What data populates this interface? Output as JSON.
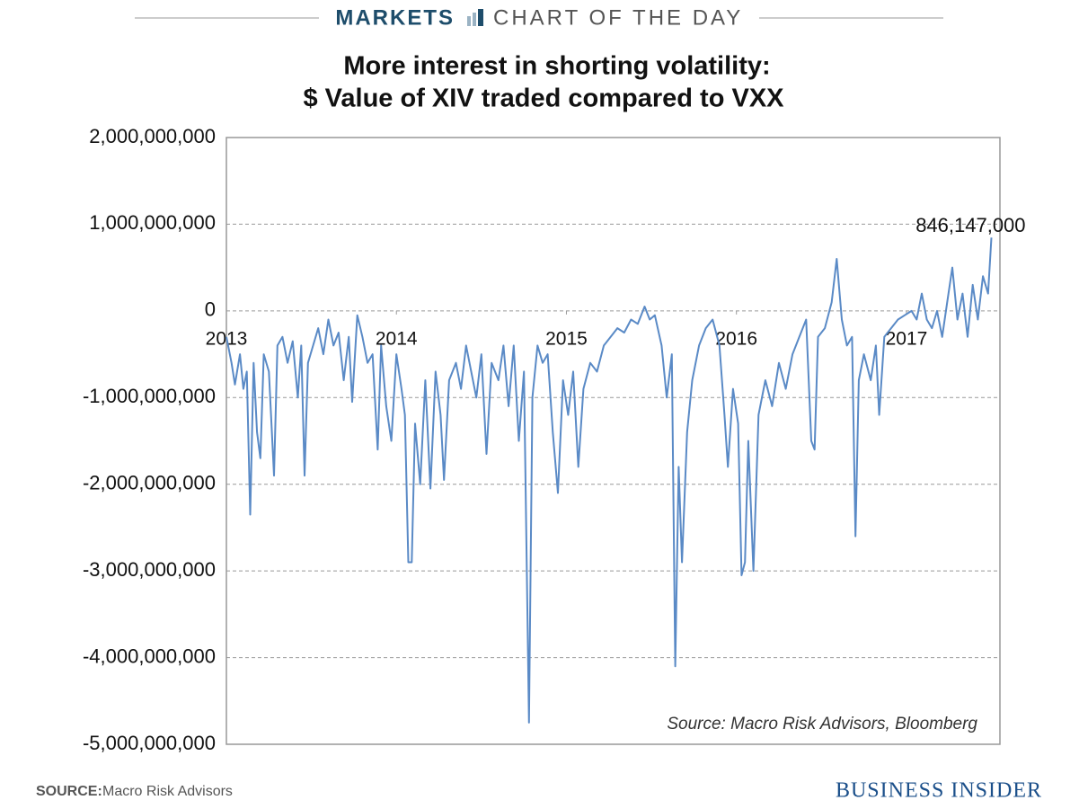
{
  "header": {
    "section": "MARKETS",
    "kicker": "CHART OF THE DAY"
  },
  "chart_data": {
    "type": "line",
    "title": [
      "More interest in shorting volatility:",
      "$ Value of XIV traded compared to VXX"
    ],
    "source_note": "Source: Macro Risk Advisors, Bloomberg",
    "xlim": [
      2013,
      2017.55
    ],
    "xticks": [
      2013,
      2014,
      2015,
      2016,
      2017
    ],
    "ylim": [
      -5000000000,
      2000000000
    ],
    "yticks": [
      {
        "value": -5000000000,
        "label": "-5,000,000,000"
      },
      {
        "value": -4000000000,
        "label": "-4,000,000,000"
      },
      {
        "value": -3000000000,
        "label": "-3,000,000,000"
      },
      {
        "value": -2000000000,
        "label": "-2,000,000,000"
      },
      {
        "value": -1000000000,
        "label": "-1,000,000,000"
      },
      0,
      {
        "value": 1000000000,
        "label": "1,000,000,000"
      },
      {
        "value": 2000000000,
        "label": "2,000,000,000"
      }
    ],
    "grid": true,
    "annotation": {
      "text": "846,147,000",
      "x": 2017.5,
      "y": 846147000
    },
    "series": [
      {
        "color": "#5a8ac6",
        "x": [
          2013.0,
          2013.03,
          2013.05,
          2013.08,
          2013.1,
          2013.12,
          2013.14,
          2013.16,
          2013.18,
          2013.2,
          2013.22,
          2013.25,
          2013.28,
          2013.3,
          2013.33,
          2013.36,
          2013.39,
          2013.42,
          2013.44,
          2013.46,
          2013.48,
          2013.51,
          2013.54,
          2013.57,
          2013.6,
          2013.63,
          2013.66,
          2013.69,
          2013.72,
          2013.74,
          2013.77,
          2013.8,
          2013.83,
          2013.86,
          2013.89,
          2013.91,
          2013.94,
          2013.97,
          2014.0,
          2014.03,
          2014.05,
          2014.07,
          2014.09,
          2014.11,
          2014.14,
          2014.17,
          2014.2,
          2014.23,
          2014.26,
          2014.28,
          2014.31,
          2014.35,
          2014.38,
          2014.41,
          2014.44,
          2014.47,
          2014.5,
          2014.53,
          2014.56,
          2014.6,
          2014.63,
          2014.66,
          2014.69,
          2014.72,
          2014.75,
          2014.78,
          2014.8,
          2014.83,
          2014.86,
          2014.89,
          2014.92,
          2014.95,
          2014.98,
          2015.01,
          2015.04,
          2015.07,
          2015.1,
          2015.14,
          2015.18,
          2015.22,
          2015.26,
          2015.3,
          2015.34,
          2015.38,
          2015.42,
          2015.46,
          2015.49,
          2015.52,
          2015.56,
          2015.59,
          2015.62,
          2015.64,
          2015.66,
          2015.68,
          2015.71,
          2015.74,
          2015.78,
          2015.82,
          2015.86,
          2015.9,
          2015.93,
          2015.95,
          2015.98,
          2016.01,
          2016.03,
          2016.05,
          2016.07,
          2016.1,
          2016.13,
          2016.17,
          2016.21,
          2016.25,
          2016.29,
          2016.33,
          2016.37,
          2016.41,
          2016.44,
          2016.46,
          2016.48,
          2016.52,
          2016.56,
          2016.59,
          2016.62,
          2016.65,
          2016.68,
          2016.7,
          2016.72,
          2016.75,
          2016.79,
          2016.82,
          2016.84,
          2016.87,
          2016.91,
          2016.95,
          2016.99,
          2017.03,
          2017.06,
          2017.09,
          2017.12,
          2017.15,
          2017.18,
          2017.21,
          2017.24,
          2017.27,
          2017.3,
          2017.33,
          2017.36,
          2017.39,
          2017.42,
          2017.45,
          2017.48,
          2017.5
        ],
        "values": [
          -300000000,
          -600000000,
          -850000000,
          -500000000,
          -900000000,
          -700000000,
          -2350000000,
          -600000000,
          -1400000000,
          -1700000000,
          -500000000,
          -700000000,
          -1900000000,
          -400000000,
          -300000000,
          -600000000,
          -350000000,
          -1000000000,
          -400000000,
          -1900000000,
          -600000000,
          -400000000,
          -200000000,
          -500000000,
          -100000000,
          -400000000,
          -250000000,
          -800000000,
          -300000000,
          -1050000000,
          -50000000,
          -300000000,
          -600000000,
          -500000000,
          -1600000000,
          -400000000,
          -1100000000,
          -1500000000,
          -500000000,
          -900000000,
          -1200000000,
          -2900000000,
          -2900000000,
          -1300000000,
          -2000000000,
          -800000000,
          -2050000000,
          -700000000,
          -1200000000,
          -1950000000,
          -800000000,
          -600000000,
          -900000000,
          -400000000,
          -700000000,
          -1000000000,
          -500000000,
          -1650000000,
          -600000000,
          -800000000,
          -400000000,
          -1100000000,
          -400000000,
          -1500000000,
          -700000000,
          -4750000000,
          -1000000000,
          -400000000,
          -600000000,
          -500000000,
          -1400000000,
          -2100000000,
          -800000000,
          -1200000000,
          -700000000,
          -1800000000,
          -900000000,
          -600000000,
          -700000000,
          -400000000,
          -300000000,
          -200000000,
          -250000000,
          -100000000,
          -150000000,
          50000000,
          -100000000,
          -50000000,
          -400000000,
          -1000000000,
          -500000000,
          -4100000000,
          -1800000000,
          -2900000000,
          -1400000000,
          -800000000,
          -400000000,
          -200000000,
          -100000000,
          -400000000,
          -1200000000,
          -1800000000,
          -900000000,
          -1300000000,
          -3050000000,
          -2900000000,
          -1500000000,
          -3000000000,
          -1200000000,
          -800000000,
          -1100000000,
          -600000000,
          -900000000,
          -500000000,
          -300000000,
          -100000000,
          -1500000000,
          -1600000000,
          -300000000,
          -200000000,
          100000000,
          600000000,
          -100000000,
          -400000000,
          -300000000,
          -2600000000,
          -800000000,
          -500000000,
          -800000000,
          -400000000,
          -1200000000,
          -300000000,
          -200000000,
          -100000000,
          -50000000,
          0,
          -100000000,
          200000000,
          -100000000,
          -200000000,
          0,
          -300000000,
          100000000,
          500000000,
          -100000000,
          200000000,
          -300000000,
          300000000,
          -100000000,
          400000000,
          200000000,
          846147000
        ]
      }
    ]
  },
  "footer": {
    "source_label": "SOURCE:",
    "source": "Macro Risk Advisors",
    "brand": "BUSINESS INSIDER"
  }
}
